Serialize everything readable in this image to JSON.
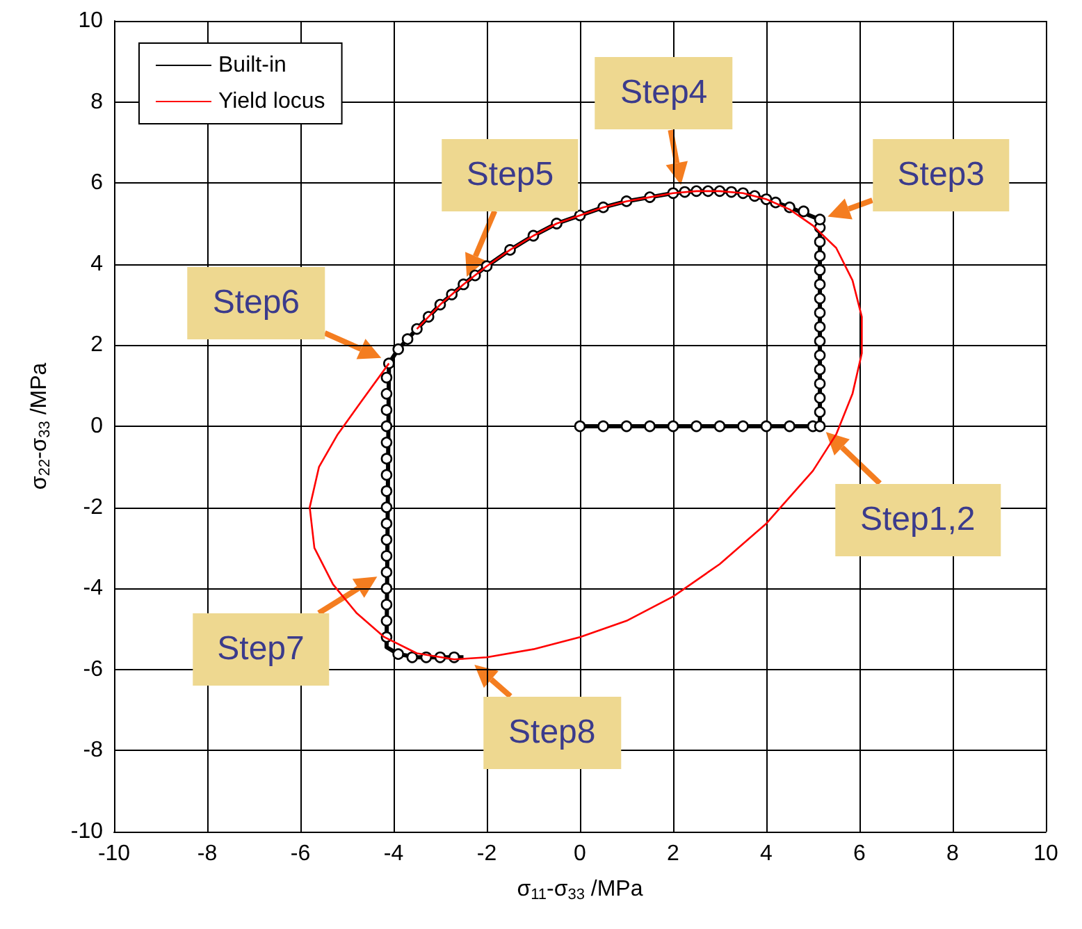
{
  "chart_data": {
    "type": "line",
    "xlabel": "σ$_{11}$-σ$_{33}$ /MPa",
    "ylabel": "σ$_{22}$-σ$_{33}$ /MPa",
    "xlim": [
      -10,
      10
    ],
    "xticks": [
      -10,
      -8,
      -6,
      -4,
      -2,
      0,
      2,
      4,
      6,
      8,
      10
    ],
    "ylim": [
      -10,
      10
    ],
    "yticks": [
      -10,
      -8,
      -6,
      -4,
      -2,
      0,
      2,
      4,
      6,
      8,
      10
    ],
    "grid": true,
    "legend": "top left",
    "series": [
      {
        "name": "Built-in",
        "color": "#000000",
        "x": [
          0,
          5.15,
          5.15,
          4.5,
          4,
          3.5,
          3,
          2.5,
          2,
          1.5,
          1,
          0.5,
          0,
          -0.5,
          -1,
          -1.5,
          -2,
          -2.5,
          -3,
          -3.5,
          -3.9,
          -4.1,
          -4.15,
          -3.9,
          -3.5,
          -2.5
        ],
        "values": [
          0,
          0,
          5.1,
          5.4,
          5.6,
          5.75,
          5.8,
          5.8,
          5.75,
          5.65,
          5.55,
          5.4,
          5.2,
          5.0,
          4.7,
          4.35,
          3.95,
          3.5,
          3.0,
          2.4,
          1.9,
          1.55,
          -5.45,
          -5.62,
          -5.7,
          -5.7
        ]
      },
      {
        "type": "scatter",
        "color": "#000000",
        "marker": "circle",
        "x": [
          0,
          0.5,
          1,
          1.5,
          2,
          2.5,
          3,
          3.5,
          4,
          4.5,
          5,
          5.15,
          5.15,
          5.15,
          5.15,
          5.15,
          5.15,
          5.15,
          5.15,
          5.15,
          5.15,
          5.15,
          5.15,
          5.15,
          5.15,
          5.15,
          5.15,
          4.8,
          4.5,
          4.2,
          4,
          3.75,
          3.5,
          3.25,
          3,
          2.75,
          2.5,
          2.25,
          2,
          1.5,
          1,
          0.5,
          0,
          -0.5,
          -1,
          -1.5,
          -2,
          -2.25,
          -2.5,
          -2.75,
          -3,
          -3.25,
          -3.5,
          -3.7,
          -3.9,
          -4.1,
          -4.15,
          -4.15,
          -4.15,
          -4.15,
          -4.15,
          -4.15,
          -4.15,
          -4.15,
          -4.15,
          -4.15,
          -4.15,
          -4.15,
          -4.15,
          -4.15,
          -4.15,
          -4.15,
          -4.15,
          -3.9,
          -3.6,
          -3.3,
          -3.0,
          -2.7
        ],
        "values": [
          0,
          0,
          0,
          0,
          0,
          0,
          0,
          0,
          0,
          0,
          0,
          0,
          0.35,
          0.7,
          1.05,
          1.4,
          1.75,
          2.1,
          2.45,
          2.8,
          3.15,
          3.5,
          3.85,
          4.2,
          4.55,
          4.9,
          5.1,
          5.3,
          5.4,
          5.52,
          5.6,
          5.68,
          5.75,
          5.78,
          5.8,
          5.8,
          5.8,
          5.78,
          5.75,
          5.65,
          5.55,
          5.4,
          5.2,
          5.0,
          4.7,
          4.35,
          3.95,
          3.72,
          3.5,
          3.25,
          3.0,
          2.7,
          2.4,
          2.15,
          1.9,
          1.55,
          1.2,
          0.8,
          0.4,
          0,
          -0.4,
          -0.8,
          -1.2,
          -1.6,
          -2.0,
          -2.4,
          -2.8,
          -3.2,
          -3.6,
          -4.0,
          -4.4,
          -4.8,
          -5.2,
          -5.62,
          -5.7,
          -5.7,
          -5.7,
          -5.7
        ]
      },
      {
        "name": "Yield locus",
        "color": "#ff0000",
        "x": [
          -3.5,
          -3,
          -2.5,
          -2,
          -1.5,
          -1,
          -0.5,
          0,
          0.5,
          1,
          1.5,
          2,
          2.5,
          3,
          3.5,
          4,
          4.5,
          5,
          5.5,
          5.85,
          6.05,
          6.05,
          5.85,
          5.5,
          5,
          4,
          3,
          2,
          1,
          0,
          -1,
          -2,
          -2.7,
          -3.5,
          -4.2,
          -4.8,
          -5.3,
          -5.7,
          -5.8,
          -5.6,
          -5.2,
          -4.7,
          -4.1
        ],
        "values": [
          2.4,
          3.0,
          3.5,
          3.95,
          4.35,
          4.7,
          5.0,
          5.2,
          5.4,
          5.55,
          5.65,
          5.75,
          5.8,
          5.8,
          5.75,
          5.6,
          5.35,
          4.95,
          4.4,
          3.6,
          2.7,
          1.8,
          0.8,
          -0.2,
          -1.1,
          -2.4,
          -3.4,
          -4.2,
          -4.8,
          -5.2,
          -5.5,
          -5.7,
          -5.75,
          -5.6,
          -5.2,
          -4.6,
          -3.9,
          -3.0,
          -2.0,
          -1.0,
          -0.2,
          0.6,
          1.55
        ]
      }
    ],
    "annotations": [
      {
        "text": "Step1,2",
        "x": 5.15,
        "y": 0
      },
      {
        "text": "Step3",
        "x": 5.15,
        "y": 5.1
      },
      {
        "text": "Step4",
        "x": 2.2,
        "y": 5.75
      },
      {
        "text": "Step5",
        "x": -2.5,
        "y": 3.5
      },
      {
        "text": "Step6",
        "x": -4.1,
        "y": 1.6
      },
      {
        "text": "Step7",
        "x": -4.2,
        "y": -3.6
      },
      {
        "text": "Step8",
        "x": -2.4,
        "y": -5.75
      }
    ]
  }
}
